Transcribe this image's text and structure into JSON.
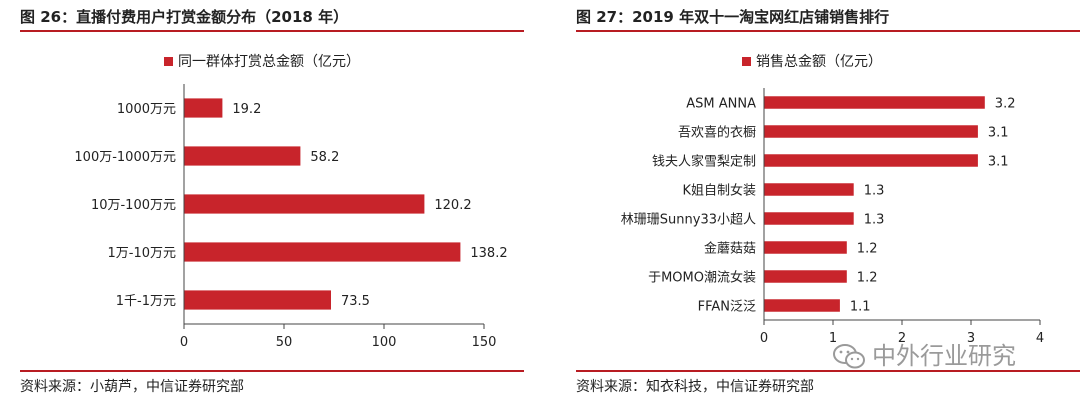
{
  "left": {
    "title": "图 26：直播付费用户打赏金额分布（2018 年）",
    "source": "资料来源：小葫芦，中信证券研究部",
    "chart_data": {
      "type": "bar",
      "orientation": "horizontal",
      "categories": [
        "1000万元",
        "100万-1000万元",
        "10万-100万元",
        "1万-10万元",
        "1千-1万元"
      ],
      "series": [
        {
          "name": "同一群体打赏总金额（亿元）",
          "values": [
            19.2,
            58.2,
            120.2,
            138.2,
            73.5
          ]
        }
      ],
      "value_labels": [
        "19.2",
        "58.2",
        "120.2",
        "138.2",
        "73.5"
      ],
      "xticks": [
        "0",
        "50",
        "100",
        "150"
      ],
      "xlim": [
        0,
        150
      ],
      "legend": "top",
      "grid": false,
      "bar_color": "#c8242b"
    }
  },
  "right": {
    "title": "图 27：2019 年双十一淘宝网红店铺销售排行",
    "source": "资料来源：知衣科技，中信证券研究部",
    "chart_data": {
      "type": "bar",
      "orientation": "horizontal",
      "categories": [
        "ASM ANNA",
        "吾欢喜的衣橱",
        "钱夫人家雪梨定制",
        "K姐自制女装",
        "林珊珊Sunny33小超人",
        "金蘑菇菇",
        "于MOMO潮流女装",
        "FFAN泛泛"
      ],
      "series": [
        {
          "name": "销售总金额（亿元）",
          "values": [
            3.2,
            3.1,
            3.1,
            1.3,
            1.3,
            1.2,
            1.2,
            1.1
          ]
        }
      ],
      "value_labels": [
        "3.2",
        "3.1",
        "3.1",
        "1.3",
        "1.3",
        "1.2",
        "1.2",
        "1.1"
      ],
      "xticks": [
        "0",
        "1",
        "2",
        "3",
        "4"
      ],
      "xlim": [
        0,
        4
      ],
      "legend": "top",
      "grid": false,
      "bar_color": "#c8242b"
    }
  },
  "watermark": "中外行业研究",
  "colors": {
    "accent": "#b81c22",
    "bar": "#c8242b"
  }
}
